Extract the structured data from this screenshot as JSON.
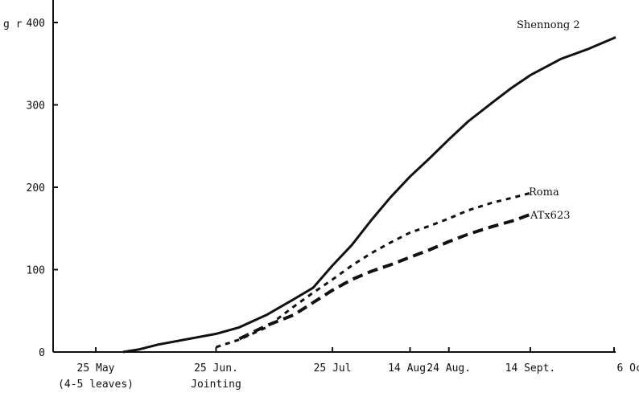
{
  "chart_data": {
    "type": "line",
    "title": "",
    "ylabel": "g r",
    "xlabel": "",
    "ylim": [
      0,
      400
    ],
    "y_ticks": [
      0,
      100,
      200,
      300,
      400
    ],
    "x_ticks": [
      {
        "date": "2024-05-25",
        "label": "25 May",
        "sublabel": "(4-5 leaves)"
      },
      {
        "date": "2024-06-25",
        "label": "25 Jun.",
        "sublabel": "Jointing"
      },
      {
        "date": "2024-07-25",
        "label": "25 Jul",
        "sublabel": ""
      },
      {
        "date": "2024-08-14",
        "label": "14 Aug.",
        "sublabel": ""
      },
      {
        "date": "2024-08-24",
        "label": "24 Aug.",
        "sublabel": ""
      },
      {
        "date": "2024-09-14",
        "label": "14 Sept.",
        "sublabel": ""
      },
      {
        "date": "2024-10-06",
        "label": "6 Oct.",
        "sublabel": ""
      }
    ],
    "xlim": [
      "2024-05-14",
      "2024-10-06"
    ],
    "grid": false,
    "series": [
      {
        "name": "Shennong 2",
        "style": "solid",
        "points": [
          [
            "2024-06-01",
            0
          ],
          [
            "2024-06-05",
            3
          ],
          [
            "2024-06-10",
            9
          ],
          [
            "2024-06-18",
            16
          ],
          [
            "2024-06-25",
            22
          ],
          [
            "2024-07-01",
            30
          ],
          [
            "2024-07-08",
            45
          ],
          [
            "2024-07-15",
            64
          ],
          [
            "2024-07-20",
            78
          ],
          [
            "2024-07-25",
            105
          ],
          [
            "2024-07-30",
            130
          ],
          [
            "2024-08-04",
            160
          ],
          [
            "2024-08-09",
            188
          ],
          [
            "2024-08-14",
            213
          ],
          [
            "2024-08-19",
            235
          ],
          [
            "2024-08-24",
            258
          ],
          [
            "2024-08-29",
            280
          ],
          [
            "2024-09-04",
            302
          ],
          [
            "2024-09-09",
            320
          ],
          [
            "2024-09-14",
            336
          ],
          [
            "2024-09-22",
            356
          ],
          [
            "2024-09-29",
            368
          ],
          [
            "2024-10-06",
            382
          ]
        ]
      },
      {
        "name": "Roma",
        "style": "dotted",
        "points": [
          [
            "2024-06-25",
            6
          ],
          [
            "2024-07-01",
            15
          ],
          [
            "2024-07-08",
            30
          ],
          [
            "2024-07-15",
            55
          ],
          [
            "2024-07-20",
            72
          ],
          [
            "2024-07-25",
            88
          ],
          [
            "2024-07-30",
            105
          ],
          [
            "2024-08-04",
            120
          ],
          [
            "2024-08-09",
            133
          ],
          [
            "2024-08-14",
            145
          ],
          [
            "2024-08-19",
            153
          ],
          [
            "2024-08-24",
            162
          ],
          [
            "2024-08-29",
            172
          ],
          [
            "2024-09-04",
            181
          ],
          [
            "2024-09-10",
            188
          ],
          [
            "2024-09-14",
            193
          ]
        ]
      },
      {
        "name": "ATx623",
        "style": "dashed",
        "points": [
          [
            "2024-07-01",
            16
          ],
          [
            "2024-07-08",
            32
          ],
          [
            "2024-07-15",
            45
          ],
          [
            "2024-07-20",
            60
          ],
          [
            "2024-07-25",
            75
          ],
          [
            "2024-07-30",
            88
          ],
          [
            "2024-08-04",
            98
          ],
          [
            "2024-08-09",
            106
          ],
          [
            "2024-08-14",
            115
          ],
          [
            "2024-08-19",
            124
          ],
          [
            "2024-08-24",
            134
          ],
          [
            "2024-08-29",
            143
          ],
          [
            "2024-09-04",
            152
          ],
          [
            "2024-09-10",
            160
          ],
          [
            "2024-09-14",
            167
          ]
        ]
      }
    ],
    "annotations": [
      {
        "text": "Shennong 2",
        "series": "Shennong 2"
      },
      {
        "text": "Roma",
        "series": "Roma"
      },
      {
        "text": "ATx623",
        "series": "ATx623"
      }
    ],
    "colors": {
      "line": "#111111",
      "axis": "#111111",
      "background": "#ffffff"
    }
  }
}
